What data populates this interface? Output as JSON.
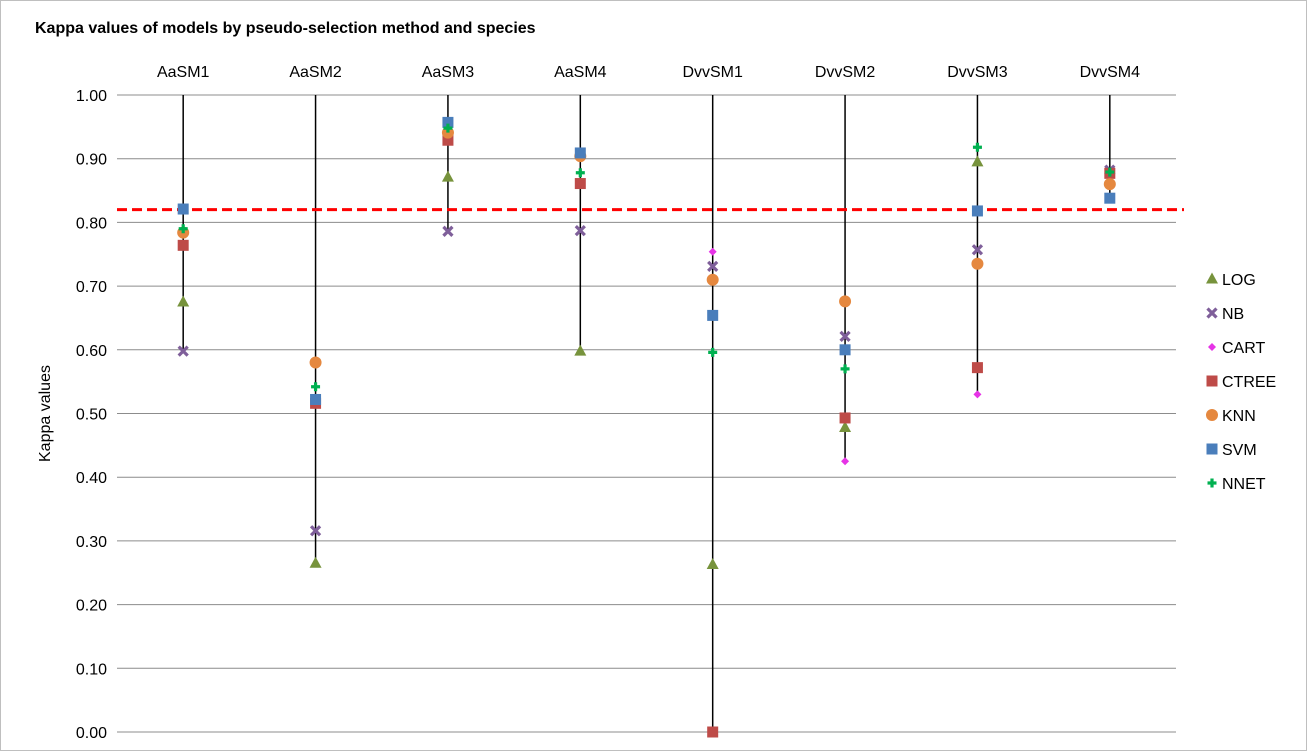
{
  "chart_data": {
    "type": "scatter",
    "title": "Kappa values of models by pseudo-selection method and species",
    "xlabel": "",
    "ylabel": "Kappa values",
    "categories": [
      "AaSM1",
      "AaSM2",
      "AaSM3",
      "AaSM4",
      "DvvSM1",
      "DvvSM2",
      "DvvSM3",
      "DvvSM4"
    ],
    "ylim": [
      0,
      1
    ],
    "yticks": [
      "0.00",
      "0.10",
      "0.20",
      "0.30",
      "0.40",
      "0.50",
      "0.60",
      "0.70",
      "0.80",
      "0.90",
      "1.00"
    ],
    "grid": true,
    "legend_position": "right",
    "reference_line": {
      "value": 0.82,
      "color": "#ff0000",
      "style": "dashed"
    },
    "range_line_color": "#000000",
    "series": [
      {
        "name": "LOG",
        "marker": "triangle",
        "color": "#77933c",
        "values": [
          0.675,
          0.265,
          0.871,
          0.598,
          0.263,
          0.478,
          0.895,
          null
        ]
      },
      {
        "name": "NB",
        "marker": "x",
        "color": "#7f5f9a",
        "values": [
          0.598,
          0.316,
          0.786,
          0.787,
          0.731,
          0.621,
          0.757,
          0.882
        ]
      },
      {
        "name": "CART",
        "marker": "diamond",
        "color": "#e633e6",
        "values": [
          null,
          null,
          null,
          null,
          0.754,
          0.425,
          0.53,
          null
        ]
      },
      {
        "name": "CTREE",
        "marker": "square",
        "color": "#be4b48",
        "values": [
          0.764,
          0.516,
          0.929,
          0.861,
          0.0,
          0.493,
          0.572,
          0.877
        ]
      },
      {
        "name": "KNN",
        "marker": "circle",
        "color": "#e5883f",
        "values": [
          0.784,
          0.58,
          0.941,
          0.904,
          0.71,
          0.676,
          0.735,
          0.86
        ]
      },
      {
        "name": "SVM",
        "marker": "square",
        "color": "#4a7ebb",
        "values": [
          0.821,
          0.522,
          0.957,
          0.909,
          0.654,
          0.6,
          0.818,
          0.838
        ]
      },
      {
        "name": "NNET",
        "marker": "plus",
        "color": "#00b050",
        "values": [
          0.79,
          0.542,
          0.948,
          0.878,
          0.596,
          0.57,
          0.918,
          0.879
        ]
      }
    ]
  }
}
